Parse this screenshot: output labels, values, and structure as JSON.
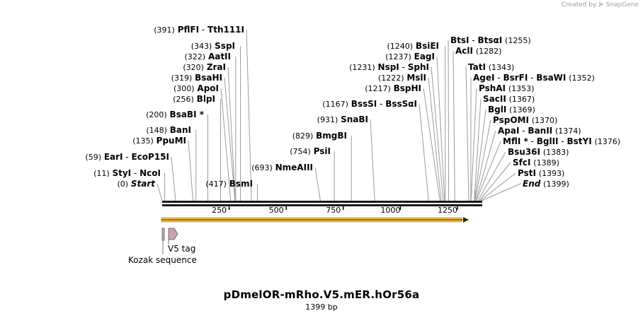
{
  "header": {
    "created_by": "Created by",
    "brand": "SnapGene"
  },
  "plasmid": {
    "name": "pDmelOR-mRho.V5.mER.hOr56a",
    "length_label": "1399 bp",
    "length_bp": 1399
  },
  "ruler": {
    "ticks": [
      250,
      500,
      750,
      1000,
      1250
    ]
  },
  "sites": [
    {
      "pos": "(0)",
      "bp": 0,
      "names": [
        "Start"
      ],
      "italic": true
    },
    {
      "pos": "(11)",
      "bp": 11,
      "names": [
        "StyI",
        "NcoI"
      ]
    },
    {
      "pos": "(59)",
      "bp": 59,
      "names": [
        "EarI",
        "EcoP15I"
      ]
    },
    {
      "pos": "(135)",
      "bp": 135,
      "names": [
        "PpuMI"
      ]
    },
    {
      "pos": "(148)",
      "bp": 148,
      "names": [
        "BanI"
      ]
    },
    {
      "pos": "(200)",
      "bp": 200,
      "names": [
        "BsaBI *"
      ]
    },
    {
      "pos": "(256)",
      "bp": 256,
      "names": [
        "BlpI"
      ]
    },
    {
      "pos": "(300)",
      "bp": 300,
      "names": [
        "ApoI"
      ]
    },
    {
      "pos": "(319)",
      "bp": 319,
      "names": [
        "BsaHI"
      ]
    },
    {
      "pos": "(320)",
      "bp": 320,
      "names": [
        "ZraI"
      ]
    },
    {
      "pos": "(322)",
      "bp": 322,
      "names": [
        "AatII"
      ]
    },
    {
      "pos": "(343)",
      "bp": 343,
      "names": [
        "SspI"
      ]
    },
    {
      "pos": "(391)",
      "bp": 391,
      "names": [
        "PflFI",
        "Tth111I"
      ]
    },
    {
      "pos": "(417)",
      "bp": 417,
      "names": [
        "BsmI"
      ]
    },
    {
      "pos": "(693)",
      "bp": 693,
      "names": [
        "NmeAIII"
      ]
    },
    {
      "pos": "(754)",
      "bp": 754,
      "names": [
        "PsiI"
      ]
    },
    {
      "pos": "(829)",
      "bp": 829,
      "names": [
        "BmgBI"
      ]
    },
    {
      "pos": "(931)",
      "bp": 931,
      "names": [
        "SnaBI"
      ]
    },
    {
      "pos": "(1167)",
      "bp": 1167,
      "names": [
        "BssSI",
        "BssSαI"
      ]
    },
    {
      "pos": "(1217)",
      "bp": 1217,
      "names": [
        "BspHI"
      ]
    },
    {
      "pos": "(1222)",
      "bp": 1222,
      "names": [
        "MslI"
      ]
    },
    {
      "pos": "(1231)",
      "bp": 1231,
      "names": [
        "NspI",
        "SphI"
      ]
    },
    {
      "pos": "(1237)",
      "bp": 1237,
      "names": [
        "EagI"
      ]
    },
    {
      "pos": "(1240)",
      "bp": 1240,
      "names": [
        "BsiEI"
      ]
    },
    {
      "pos": "(1255)",
      "bp": 1255,
      "names": [
        "BtsI",
        "BtsαI"
      ]
    },
    {
      "pos": "(1282)",
      "bp": 1282,
      "names": [
        "AclI"
      ]
    },
    {
      "pos": "(1343)",
      "bp": 1343,
      "names": [
        "TatI"
      ]
    },
    {
      "pos": "(1352)",
      "bp": 1352,
      "names": [
        "AgeI",
        "BsrFI",
        "BsaWI"
      ]
    },
    {
      "pos": "(1353)",
      "bp": 1353,
      "names": [
        "PshAI"
      ]
    },
    {
      "pos": "(1367)",
      "bp": 1367,
      "names": [
        "SacII"
      ]
    },
    {
      "pos": "(1369)",
      "bp": 1369,
      "names": [
        "BglI"
      ]
    },
    {
      "pos": "(1370)",
      "bp": 1370,
      "names": [
        "PspOMI"
      ]
    },
    {
      "pos": "(1374)",
      "bp": 1374,
      "names": [
        "ApaI",
        "BanII"
      ]
    },
    {
      "pos": "(1376)",
      "bp": 1376,
      "names": [
        "MflI *",
        "BglII",
        "BstYI"
      ]
    },
    {
      "pos": "(1383)",
      "bp": 1383,
      "names": [
        "Bsu36I"
      ]
    },
    {
      "pos": "(1389)",
      "bp": 1389,
      "names": [
        "SfcI"
      ]
    },
    {
      "pos": "(1393)",
      "bp": 1393,
      "names": [
        "PstI"
      ]
    },
    {
      "pos": "(1399)",
      "bp": 1399,
      "names": [
        "End"
      ],
      "italic": true
    }
  ],
  "features": [
    {
      "name": "V5 tag",
      "color": "#c9a0b4"
    },
    {
      "name": "Kozak sequence",
      "color": "#b8b8b8"
    }
  ],
  "colors": {
    "orf_arrow": "#f5c242",
    "orf_outline": "#8a6a1a",
    "backbone": "#1a1a1a",
    "v5": "#c9a0b4",
    "kozak": "#b8b8b8"
  }
}
